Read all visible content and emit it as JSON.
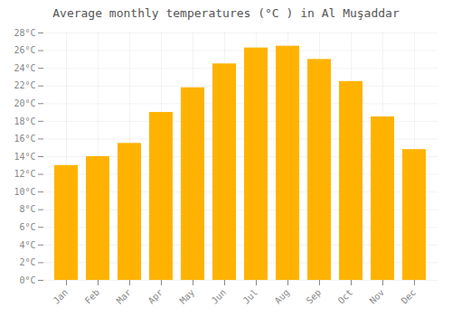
{
  "chart_data": {
    "type": "bar",
    "title": "Average monthly temperatures (°C ) in Al Muşaddar",
    "categories": [
      "Jan",
      "Feb",
      "Mar",
      "Apr",
      "May",
      "Jun",
      "Jul",
      "Aug",
      "Sep",
      "Oct",
      "Nov",
      "Dec"
    ],
    "values": [
      13,
      14,
      15.5,
      19,
      21.8,
      24.5,
      26.3,
      26.5,
      25,
      22.5,
      18.5,
      14.8
    ],
    "color": "#FFB300",
    "ylim": [
      0,
      28
    ],
    "yticks": [
      {
        "value": 0,
        "label": "0°C"
      },
      {
        "value": 2,
        "label": "2°C"
      },
      {
        "value": 4,
        "label": "4°C"
      },
      {
        "value": 6,
        "label": "6°C"
      },
      {
        "value": 8,
        "label": "8°C"
      },
      {
        "value": 10,
        "label": "10°C"
      },
      {
        "value": 12,
        "label": "12°C"
      },
      {
        "value": 14,
        "label": "14°C"
      },
      {
        "value": 16,
        "label": "16°C"
      },
      {
        "value": 18,
        "label": "18°C"
      },
      {
        "value": 20,
        "label": "20°C"
      },
      {
        "value": 22,
        "label": "22°C"
      },
      {
        "value": 24,
        "label": "24°C"
      },
      {
        "value": 26,
        "label": "26°C"
      },
      {
        "value": 28,
        "label": "28°C"
      }
    ],
    "grid": true
  }
}
